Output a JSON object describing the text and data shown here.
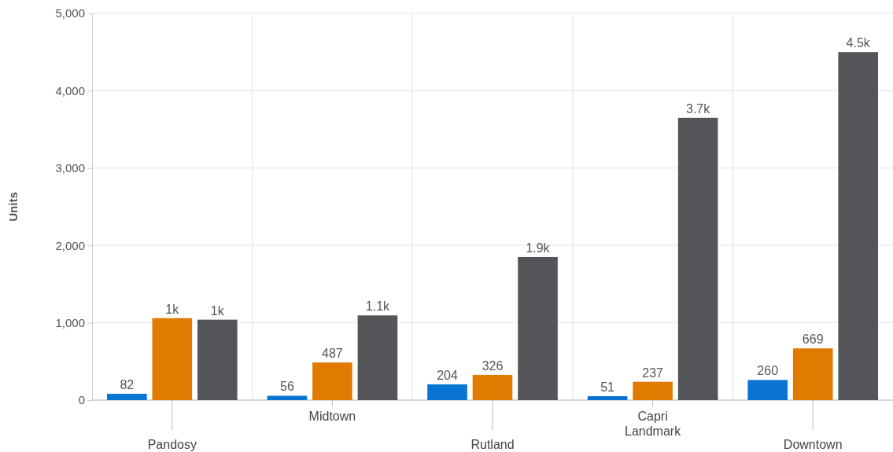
{
  "chart_data": {
    "type": "bar",
    "ylabel": "Units",
    "categories": [
      "Pandosy",
      "Midtown",
      "Rutland",
      "Capri Landmark",
      "Downtown"
    ],
    "series": [
      {
        "color": "#0a74d4",
        "values": [
          82,
          56,
          204,
          51,
          260
        ],
        "value_labels": [
          "82",
          "56",
          "204",
          "51",
          "260"
        ]
      },
      {
        "color": "#e07b00",
        "values": [
          1060,
          487,
          326,
          237,
          669
        ],
        "value_labels": [
          "1k",
          "487",
          "326",
          "237",
          "669"
        ]
      },
      {
        "color": "#545558",
        "values": [
          1040,
          1095,
          1850,
          3650,
          4500
        ],
        "value_labels": [
          "1k",
          "1.1k",
          "1.9k",
          "3.7k",
          "4.5k"
        ]
      }
    ],
    "ylim": [
      0,
      5000
    ],
    "yticks": [
      {
        "value": 0,
        "label": "0"
      },
      {
        "value": 1000,
        "label": "1,000"
      },
      {
        "value": 2000,
        "label": "2,000"
      },
      {
        "value": 3000,
        "label": "3,000"
      },
      {
        "value": 4000,
        "label": "4,000"
      },
      {
        "value": 5000,
        "label": "5,000"
      }
    ],
    "grid": true
  }
}
